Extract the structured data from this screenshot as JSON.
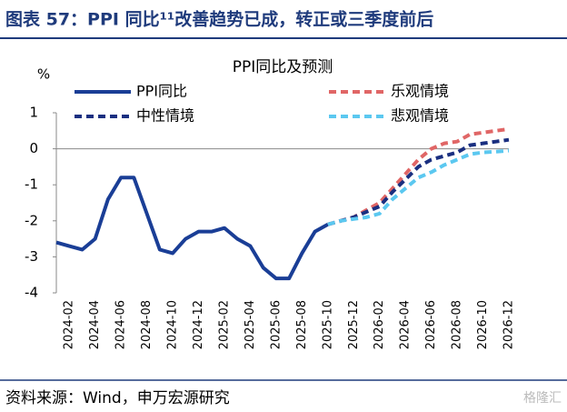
{
  "header": {
    "title": "图表 57：PPI 同比¹¹改善趋势已成，转正或三季度前后"
  },
  "chart_data": {
    "type": "line",
    "title": "PPI同比及预测",
    "ylabel": "%",
    "categories": [
      null,
      "2024-02",
      null,
      "2024-04",
      null,
      "2024-06",
      null,
      "2024-08",
      null,
      "2024-10",
      null,
      "2024-12",
      null,
      "2025-02",
      null,
      "2025-04",
      null,
      "2025-06",
      null,
      "2025-08",
      null,
      "2025-10",
      null,
      "2025-12",
      null,
      "2026-02",
      null,
      "2026-04",
      null,
      "2026-06",
      null,
      "2026-08",
      null,
      "2026-10",
      null,
      "2026-12"
    ],
    "series": [
      {
        "name": "PPI同比",
        "color": "#1a3e96",
        "line_style": "solid",
        "values": [
          -2.6,
          -2.7,
          -2.8,
          -2.5,
          -1.4,
          -0.8,
          -0.8,
          -1.8,
          -2.8,
          -2.9,
          -2.5,
          -2.3,
          -2.3,
          -2.2,
          -2.5,
          -2.7,
          -3.3,
          -3.6,
          -3.6,
          -2.9,
          -2.3,
          -2.1,
          null,
          null,
          null,
          null,
          null,
          null,
          null,
          null,
          null,
          null,
          null,
          null,
          null,
          null
        ]
      },
      {
        "name": "乐观情境",
        "color": "#e06666",
        "line_style": "dashed",
        "values": [
          null,
          null,
          null,
          null,
          null,
          null,
          null,
          null,
          null,
          null,
          null,
          null,
          null,
          null,
          null,
          null,
          null,
          null,
          null,
          null,
          null,
          -2.1,
          -2.0,
          -1.9,
          -1.7,
          -1.5,
          -1.1,
          -0.7,
          -0.3,
          0.0,
          0.15,
          0.2,
          0.4,
          0.45,
          0.5,
          0.55
        ]
      },
      {
        "name": "中性情境",
        "color": "#1a2f80",
        "line_style": "dashed",
        "values": [
          null,
          null,
          null,
          null,
          null,
          null,
          null,
          null,
          null,
          null,
          null,
          null,
          null,
          null,
          null,
          null,
          null,
          null,
          null,
          null,
          null,
          -2.1,
          -2.0,
          -1.9,
          -1.75,
          -1.6,
          -1.2,
          -0.85,
          -0.5,
          -0.3,
          -0.2,
          -0.1,
          0.1,
          0.15,
          0.2,
          0.25
        ]
      },
      {
        "name": "悲观情境",
        "color": "#5bc8f0",
        "line_style": "dashed",
        "values": [
          null,
          null,
          null,
          null,
          null,
          null,
          null,
          null,
          null,
          null,
          null,
          null,
          null,
          null,
          null,
          null,
          null,
          null,
          null,
          null,
          null,
          -2.1,
          -2.0,
          -1.95,
          -1.9,
          -1.8,
          -1.4,
          -1.1,
          -0.8,
          -0.65,
          -0.45,
          -0.3,
          -0.15,
          -0.1,
          -0.08,
          -0.05
        ]
      }
    ],
    "ylim": [
      -4,
      1
    ],
    "yticks": [
      -4,
      -3,
      -2,
      -1,
      0,
      1
    ]
  },
  "footer": {
    "source": "资料来源：Wind，申万宏源研究",
    "watermark": "格隆汇"
  }
}
